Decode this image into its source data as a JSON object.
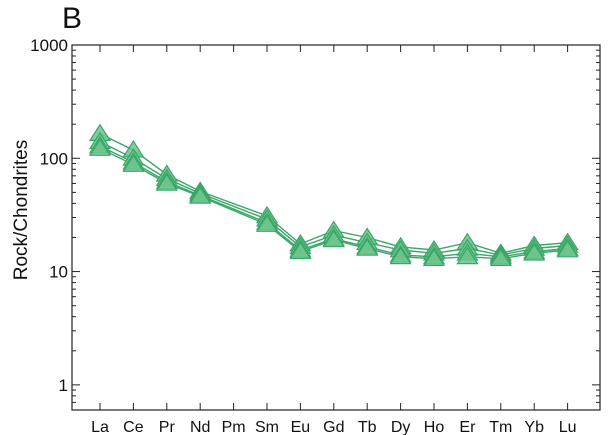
{
  "panel_label": "B",
  "chart_data": {
    "type": "line",
    "title": "",
    "xlabel": "",
    "ylabel": "Rock/Chondrites",
    "yscale": "log",
    "ylim": [
      0.6,
      1000
    ],
    "yticks": [
      1,
      10,
      100,
      1000
    ],
    "ytick_labels": [
      "1",
      "10",
      "100",
      "1000"
    ],
    "categories": [
      "La",
      "Ce",
      "Pr",
      "Nd",
      "Pm",
      "Sm",
      "Eu",
      "Gd",
      "Tb",
      "Dy",
      "Ho",
      "Er",
      "Tm",
      "Yb",
      "Lu"
    ],
    "grid": false,
    "legend": "none",
    "marker": "triangle",
    "color": "#3aa668",
    "marker_fill": "#6cc48c",
    "series": [
      {
        "values": [
          165,
          118,
          72,
          51,
          null,
          31,
          17.5,
          23,
          20,
          16.5,
          15.5,
          18,
          14.5,
          17,
          18
        ]
      },
      {
        "values": [
          140,
          100,
          66,
          49,
          null,
          29,
          16.5,
          21,
          18,
          15.5,
          14.5,
          16,
          14,
          16,
          17
        ]
      },
      {
        "values": [
          128,
          92,
          62,
          47,
          null,
          27,
          15.5,
          19.5,
          16.5,
          14,
          13.5,
          14.5,
          13.5,
          15,
          16
        ]
      },
      {
        "values": [
          122,
          88,
          60,
          46,
          null,
          26,
          15,
          19,
          16,
          13.5,
          13,
          13.5,
          13,
          14.5,
          15.5
        ]
      }
    ]
  }
}
